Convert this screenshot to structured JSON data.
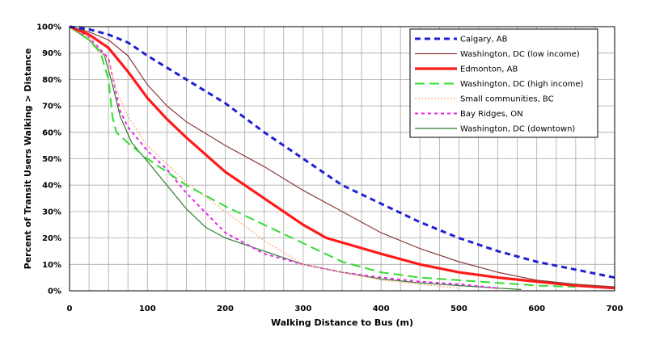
{
  "chart_data": {
    "type": "line",
    "xlabel": "Walking Distance to Bus (m)",
    "ylabel": "Percent of Transit Users Walking > Distance",
    "xlim": [
      0,
      700
    ],
    "ylim": [
      0,
      100
    ],
    "x_ticks": [
      0,
      100,
      200,
      300,
      400,
      500,
      600,
      700
    ],
    "y_ticks": [
      0,
      10,
      20,
      30,
      40,
      50,
      60,
      70,
      80,
      90,
      100
    ],
    "x_tick_labels": [
      "0",
      "100",
      "200",
      "300",
      "400",
      "500",
      "600",
      "700"
    ],
    "y_tick_labels": [
      "0%",
      "10%",
      "20%",
      "30%",
      "40%",
      "50%",
      "60%",
      "70%",
      "80%",
      "90%",
      "100%"
    ],
    "x_minor_step": 25,
    "grid": true,
    "legend_position": "top-right",
    "series": [
      {
        "name": "Calgary, AB",
        "color": "#1f1fd6",
        "style": "dotted",
        "width": 3,
        "x": [
          0,
          25,
          50,
          75,
          100,
          150,
          200,
          250,
          300,
          350,
          400,
          450,
          500,
          550,
          600,
          650,
          700
        ],
        "y": [
          100,
          99,
          97,
          94,
          89,
          80,
          71,
          60,
          50,
          40,
          33,
          26,
          20,
          15,
          11,
          8,
          5
        ]
      },
      {
        "name": "Washington, DC (low income)",
        "color": "#8b3a3a",
        "style": "solid",
        "width": 1.2,
        "x": [
          0,
          25,
          50,
          75,
          100,
          125,
          150,
          200,
          250,
          300,
          350,
          400,
          450,
          500,
          550,
          600,
          650,
          700
        ],
        "y": [
          100,
          98,
          95,
          89,
          78,
          70,
          64,
          55,
          47,
          38,
          30,
          22,
          16,
          11,
          7,
          4,
          2.5,
          1.5
        ]
      },
      {
        "name": "Edmonton, AB",
        "color": "#ff1a1a",
        "style": "solid",
        "width": 3.2,
        "x": [
          0,
          25,
          50,
          75,
          100,
          125,
          150,
          200,
          250,
          300,
          330,
          400,
          450,
          500,
          550,
          600,
          650,
          700
        ],
        "y": [
          100,
          97,
          92,
          83,
          73,
          65,
          58,
          45,
          35,
          25,
          20,
          14,
          10,
          7,
          5,
          3.5,
          2,
          1
        ]
      },
      {
        "name": "Washington, DC (high income)",
        "color": "#33dd33",
        "style": "dashed",
        "width": 2,
        "x": [
          0,
          25,
          40,
          50,
          55,
          60,
          75,
          100,
          150,
          200,
          250,
          300,
          350,
          400,
          450,
          500,
          550,
          600,
          650
        ],
        "y": [
          100,
          95,
          90,
          80,
          66,
          60,
          56,
          50,
          40,
          32,
          25,
          18,
          11,
          7,
          5,
          4,
          3,
          2,
          1.5
        ]
      },
      {
        "name": "Small communities, BC",
        "color": "#ffb380",
        "style": "dotted",
        "width": 1.4,
        "x": [
          0,
          25,
          50,
          60,
          75,
          100,
          150,
          200,
          250,
          300,
          350,
          400,
          450,
          500
        ],
        "y": [
          100,
          96,
          87,
          76,
          66,
          55,
          41,
          30,
          19,
          10,
          7,
          4,
          2.5,
          1
        ]
      },
      {
        "name": "Bay Ridges, ON",
        "color": "#ee22ee",
        "style": "dotted",
        "width": 2,
        "x": [
          0,
          25,
          50,
          65,
          75,
          100,
          125,
          150,
          200,
          250,
          300,
          350,
          400,
          450,
          500,
          550
        ],
        "y": [
          100,
          96,
          88,
          68,
          62,
          53,
          46,
          37,
          22,
          14,
          10,
          7,
          5,
          3.5,
          2.5,
          1
        ]
      },
      {
        "name": "Washington, DC (downtown)",
        "color": "#2e7d2e",
        "style": "solid",
        "width": 1.2,
        "x": [
          0,
          25,
          45,
          55,
          65,
          80,
          100,
          125,
          150,
          175,
          200,
          250,
          300,
          350,
          400,
          450,
          500,
          550,
          580
        ],
        "y": [
          100,
          95,
          89,
          78,
          66,
          56,
          49,
          40,
          31,
          24,
          20,
          15,
          10,
          7,
          4.5,
          3,
          2,
          1,
          0.5
        ]
      }
    ]
  }
}
